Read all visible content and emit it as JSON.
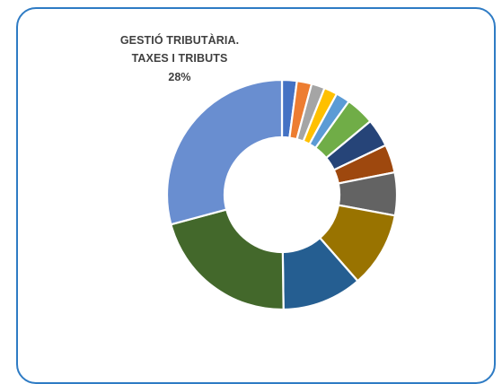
{
  "chart_data": {
    "type": "pie",
    "donut": true,
    "title": "",
    "callout": {
      "line1": "GESTIÓ TRIBUTÀRIA.",
      "line2": "TAXES I TRIBUTS",
      "value_label": "28%"
    },
    "slices": [
      {
        "value": 2.0,
        "color": "#4472C4"
      },
      {
        "value": 2.0,
        "color": "#ED7D31"
      },
      {
        "value": 1.8,
        "color": "#A5A5A5"
      },
      {
        "value": 1.8,
        "color": "#FFC000"
      },
      {
        "value": 1.9,
        "color": "#5B9BD5"
      },
      {
        "value": 3.9,
        "color": "#70AD47"
      },
      {
        "value": 3.8,
        "color": "#264478"
      },
      {
        "value": 3.8,
        "color": "#9E480E"
      },
      {
        "value": 5.8,
        "color": "#636363"
      },
      {
        "value": 10.2,
        "color": "#997300"
      },
      {
        "value": 10.8,
        "color": "#255E91"
      },
      {
        "value": 20.2,
        "color": "#43682B"
      },
      {
        "value": 28.0,
        "color": "#698ED0"
      }
    ],
    "start_angle_deg": 0,
    "legend": "none"
  }
}
